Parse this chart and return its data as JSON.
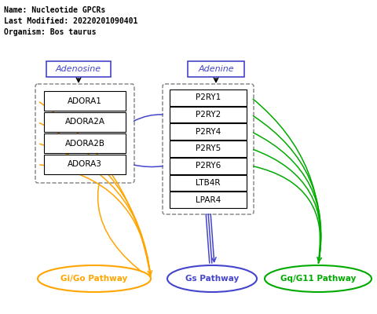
{
  "title_lines": [
    "Name: Nucleotide GPCRs",
    "Last Modified: 20220201090401",
    "Organism: Bos taurus"
  ],
  "adenosine_label": "Adenosine",
  "adenine_label": "Adenine",
  "adora_genes": [
    "ADORA1",
    "ADORA2A",
    "ADORA2B",
    "ADORA3"
  ],
  "p2ry_genes": [
    "P2RY1",
    "P2RY2",
    "P2RY4",
    "P2RY5",
    "P2RY6",
    "LTB4R",
    "LPAR4"
  ],
  "pathways": [
    "Gi/Go Pathway",
    "Gs Pathway",
    "Gq/G11 Pathway"
  ],
  "pathway_colors": [
    "#FFA500",
    "#2222DD",
    "#00AA00"
  ],
  "blue_color": "#4444CC",
  "orange_color": "#FFA500",
  "green_color": "#00AA00",
  "background_color": "#FFFFFF"
}
